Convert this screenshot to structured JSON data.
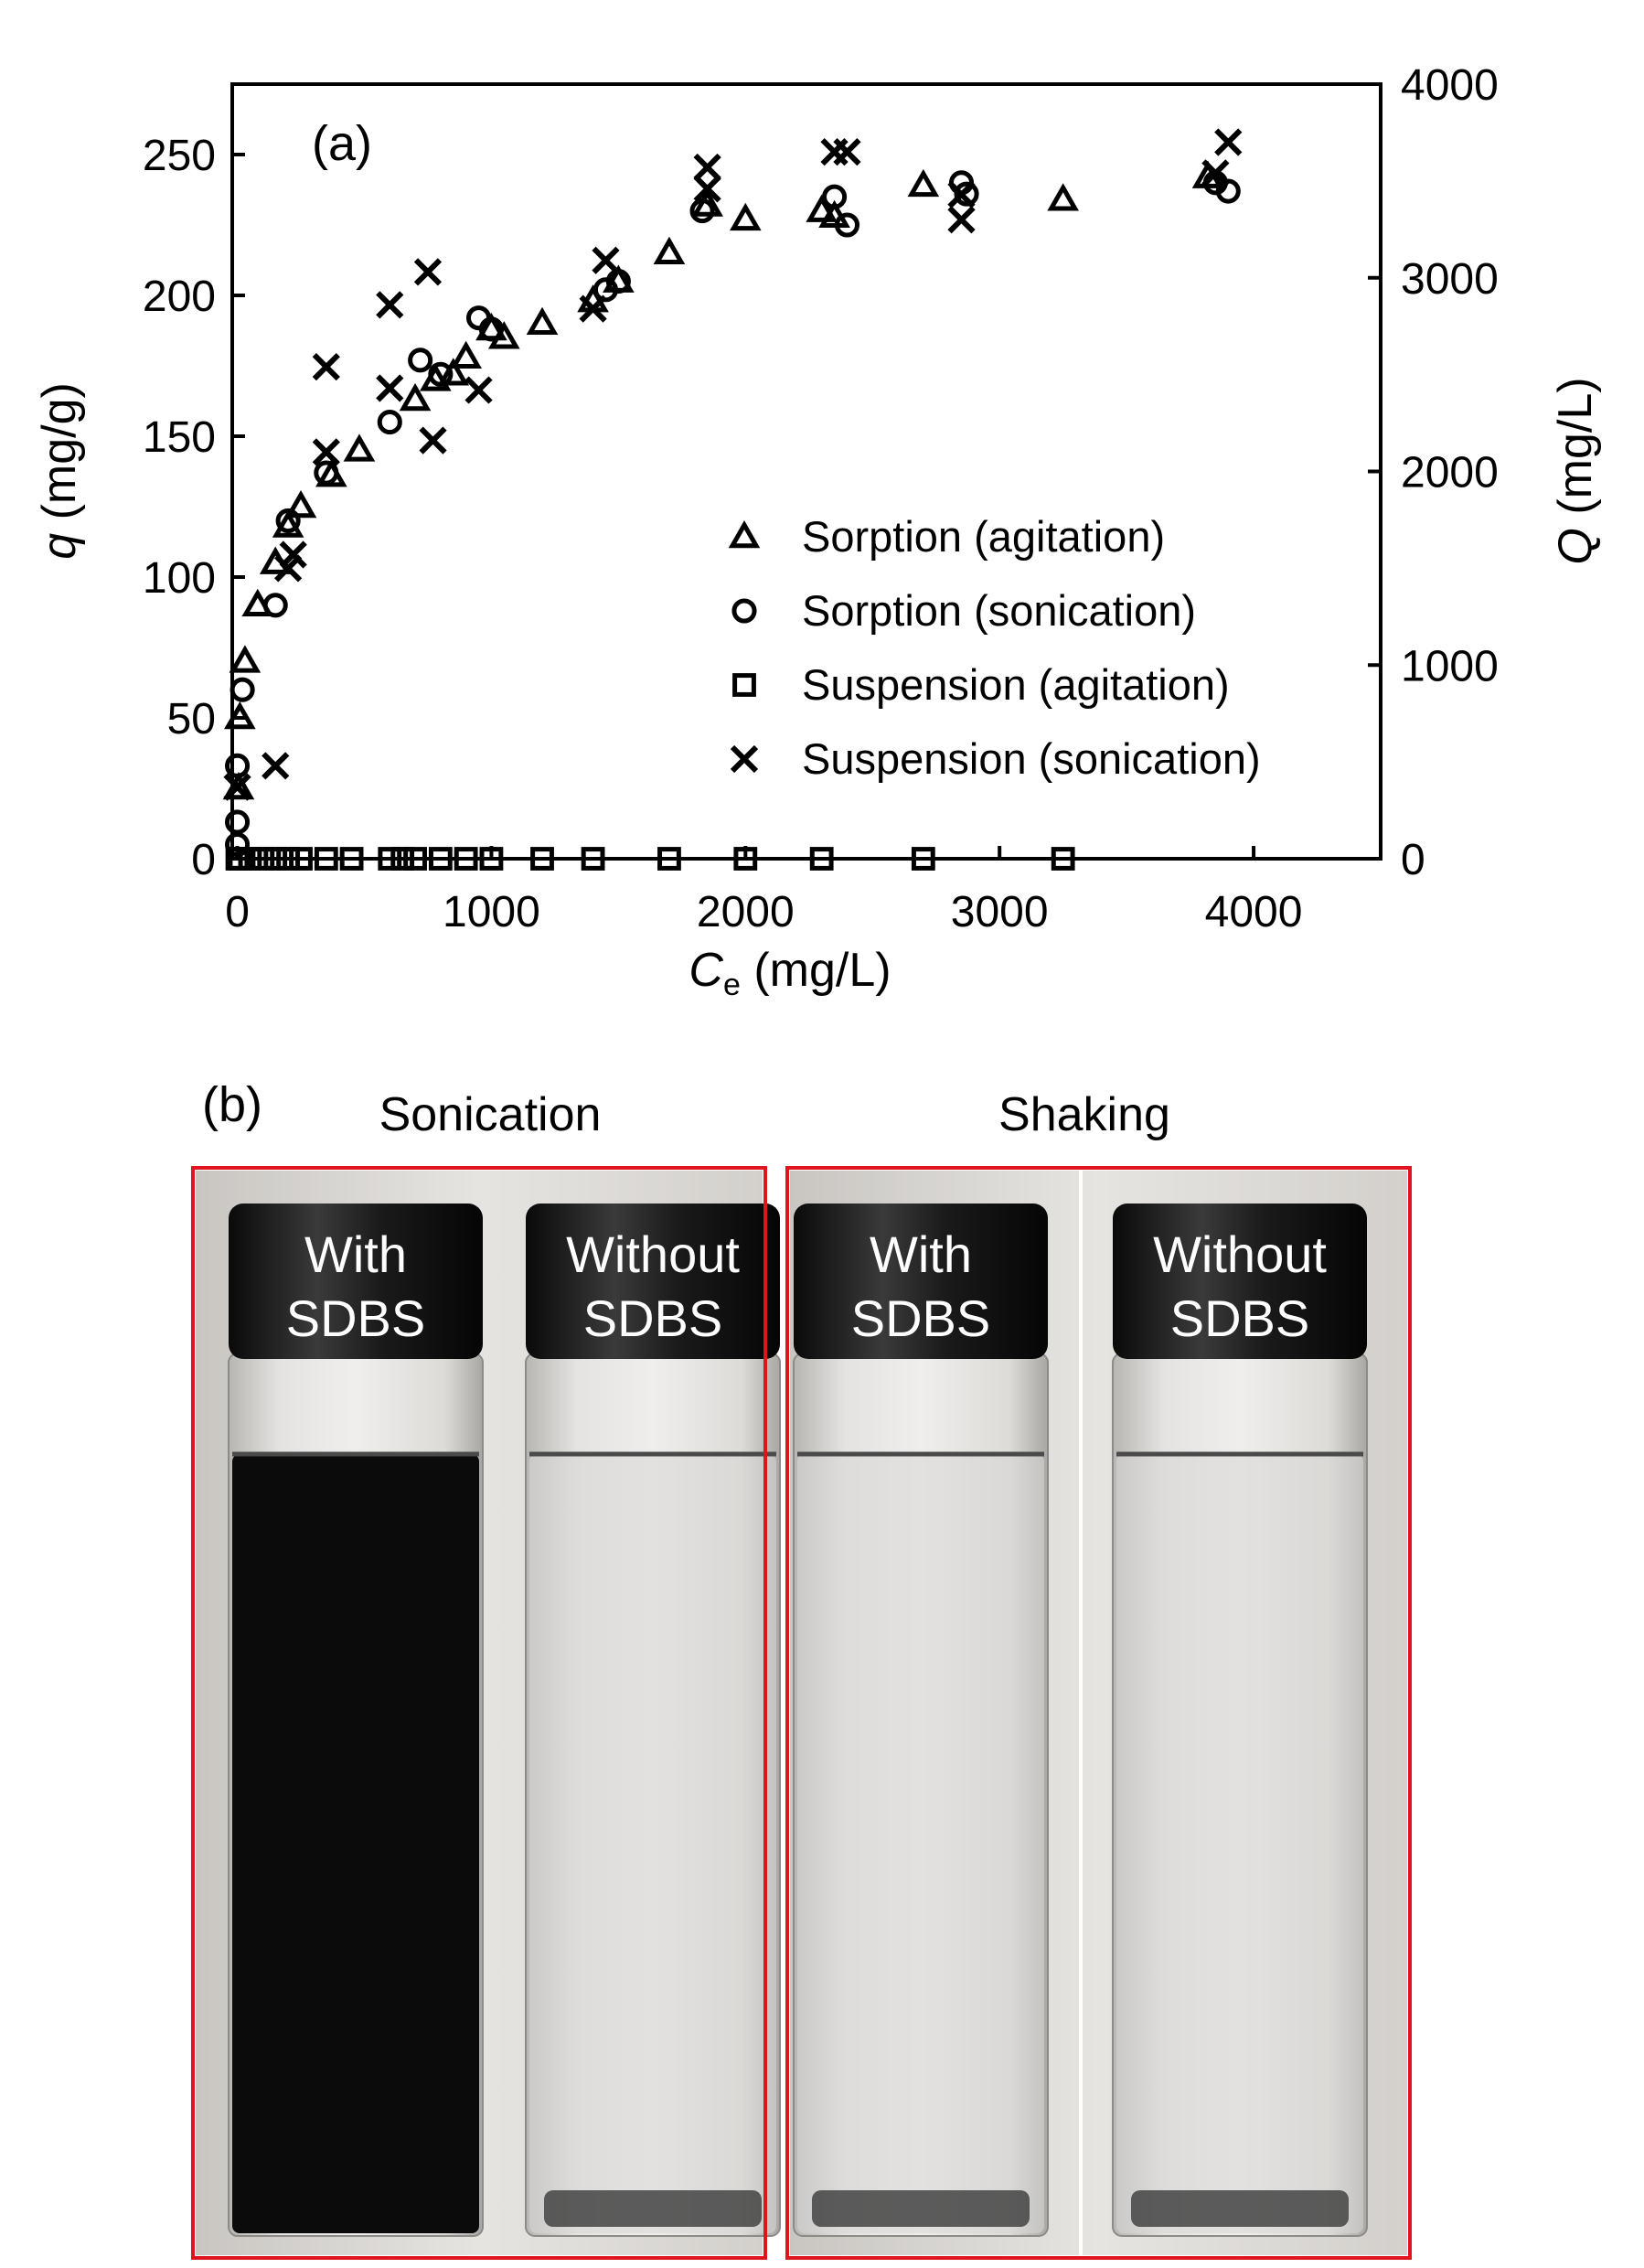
{
  "chart_data": {
    "type": "scatter",
    "panel_label": "(a)",
    "x_label": [
      "C",
      "e",
      " (mg/L)"
    ],
    "y_label": [
      "q",
      " (mg/g)"
    ],
    "y2_label": [
      "Q",
      " (mg/L)"
    ],
    "xlim": [
      -20,
      4500
    ],
    "xticks": [
      0,
      1000,
      2000,
      3000,
      4000
    ],
    "ylim": [
      0,
      275
    ],
    "yticks": [
      0,
      50,
      100,
      150,
      200,
      250
    ],
    "y2lim": [
      0,
      4000
    ],
    "y2ticks": [
      0,
      1000,
      2000,
      3000,
      4000
    ],
    "series": [
      {
        "name": "Sorption (agitation)",
        "marker": "triangle",
        "color": "#000000",
        "x": [
          5,
          10,
          30,
          80,
          150,
          200,
          250,
          370,
          480,
          700,
          780,
          850,
          900,
          1000,
          1050,
          1200,
          1400,
          1500,
          1700,
          1850,
          2000,
          2300,
          2350,
          2700,
          3250,
          3820
        ],
        "values": [
          25,
          50,
          70,
          90,
          105,
          118,
          125,
          136,
          145,
          163,
          170,
          172,
          178,
          188,
          185,
          190,
          198,
          205,
          215,
          232,
          227,
          230,
          228,
          239,
          234,
          242
        ]
      },
      {
        "name": "Sorption (sonication)",
        "marker": "circle",
        "color": "#000000",
        "x": [
          0,
          0,
          0,
          20,
          150,
          200,
          350,
          600,
          720,
          800,
          950,
          1000,
          1500,
          1450,
          1830,
          2350,
          2400,
          2850,
          2870,
          3850,
          3900
        ],
        "values": [
          5,
          13,
          33,
          60,
          90,
          120,
          137,
          155,
          177,
          172,
          192,
          188,
          205,
          202,
          230,
          235,
          225,
          240,
          236,
          240,
          237
        ]
      },
      {
        "name": "Suspension (agitation)",
        "marker": "square",
        "color": "#000000",
        "axis": "y2",
        "x": [
          0,
          10,
          50,
          100,
          150,
          200,
          250,
          350,
          450,
          600,
          650,
          700,
          800,
          900,
          1000,
          1200,
          1400,
          1700,
          2000,
          2300,
          2700,
          3250
        ],
        "values": [
          0,
          0,
          0,
          0,
          0,
          0,
          0,
          0,
          0,
          0,
          0,
          0,
          0,
          0,
          0,
          0,
          0,
          0,
          0,
          0,
          0,
          0
        ]
      },
      {
        "name": "Suspension (sonication)",
        "marker": "x",
        "color": "#000000",
        "axis": "y2",
        "x": [
          0,
          150,
          200,
          220,
          350,
          350,
          600,
          600,
          750,
          770,
          950,
          1400,
          1450,
          1850,
          1850,
          2350,
          2400,
          2850,
          2850,
          3900,
          3850
        ],
        "values": [
          370,
          480,
          1500,
          1570,
          2100,
          2540,
          2430,
          2860,
          3030,
          2160,
          2420,
          2840,
          3090,
          3570,
          3460,
          3650,
          3650,
          3300,
          3430,
          3700,
          3540
        ]
      }
    ]
  },
  "panel_b": {
    "label": "(b)",
    "groups": [
      {
        "title": "Sonication",
        "vials": [
          {
            "label": [
              "With",
              "SDBS"
            ]
          },
          {
            "label": [
              "Without",
              "SDBS"
            ]
          }
        ]
      },
      {
        "title": "Shaking",
        "vials": [
          {
            "label": [
              "With",
              "SDBS"
            ]
          },
          {
            "label": [
              "Without",
              "SDBS"
            ]
          }
        ]
      }
    ]
  }
}
